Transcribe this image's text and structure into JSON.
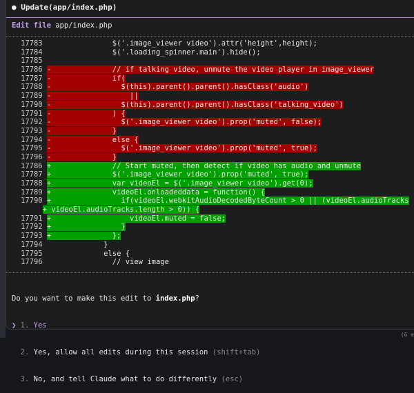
{
  "header": {
    "title": "● Update(app/index.php)",
    "edit_keyword": "Edit file",
    "file_path": "app/index.php"
  },
  "colors": {
    "removed": "#a30000",
    "added": "#00a000",
    "accent": "#c29df0"
  },
  "diff": [
    {
      "num": "17783",
      "sign": " ",
      "type": "ctx",
      "code": "             $('.image_viewer video').attr('height',height);"
    },
    {
      "num": "17784",
      "sign": " ",
      "type": "ctx",
      "code": "             $('.loading_spinner.main').hide();"
    },
    {
      "num": "17785",
      "sign": " ",
      "type": "ctx",
      "code": ""
    },
    {
      "num": "17786",
      "sign": "-",
      "type": "del",
      "code": "             // if talking video, unmute the video player in image_viewer"
    },
    {
      "num": "17787",
      "sign": "-",
      "type": "del",
      "code": "             if("
    },
    {
      "num": "17788",
      "sign": "-",
      "type": "del",
      "code": "               $(this).parent().parent().hasClass('audio')"
    },
    {
      "num": "17789",
      "sign": "-",
      "type": "del",
      "code": "                 ||"
    },
    {
      "num": "17790",
      "sign": "-",
      "type": "del",
      "code": "               $(this).parent().parent().hasClass('talking_video')"
    },
    {
      "num": "17791",
      "sign": "-",
      "type": "del",
      "code": "             ) {"
    },
    {
      "num": "17792",
      "sign": "-",
      "type": "del",
      "code": "               $('.image_viewer video').prop('muted', false);"
    },
    {
      "num": "17793",
      "sign": "-",
      "type": "del",
      "code": "             }"
    },
    {
      "num": "17794",
      "sign": "-",
      "type": "del",
      "code": "             else {"
    },
    {
      "num": "17795",
      "sign": "-",
      "type": "del",
      "code": "               $('.image_viewer video').prop('muted', true);"
    },
    {
      "num": "17796",
      "sign": "-",
      "type": "del",
      "code": "             }"
    },
    {
      "num": "17786",
      "sign": "+",
      "type": "add",
      "code": "             // Start muted, then detect if video has audio and unmute"
    },
    {
      "num": "17787",
      "sign": "+",
      "type": "add",
      "code": "             $('.image_viewer video').prop('muted', true);"
    },
    {
      "num": "17788",
      "sign": "+",
      "type": "add",
      "code": "             var videoEl = $('.image_viewer video').get(0);"
    },
    {
      "num": "17789",
      "sign": "+",
      "type": "add",
      "code": "             videoEl.onloadeddata = function() {"
    },
    {
      "num": "17790",
      "sign": "+",
      "type": "add",
      "code": "               if(videoEl.webkitAudioDecodedByteCount > 0 || (videoEl.audioTracks"
    },
    {
      "num": "",
      "sign": "+",
      "type": "add wrap",
      "code": "videoEl.audioTracks.length > 0)) {"
    },
    {
      "num": "17791",
      "sign": "+",
      "type": "add",
      "code": "                 videoEl.muted = false;"
    },
    {
      "num": "17792",
      "sign": "+",
      "type": "add",
      "code": "               }"
    },
    {
      "num": "17793",
      "sign": "+",
      "type": "add",
      "code": "             };"
    },
    {
      "num": "17794",
      "sign": " ",
      "type": "ctx",
      "code": "           }"
    },
    {
      "num": "17795",
      "sign": " ",
      "type": "ctx",
      "code": "           else {"
    },
    {
      "num": "17796",
      "sign": " ",
      "type": "ctx",
      "code": "             // view image"
    }
  ],
  "prompt": {
    "question_prefix": "Do you want to make this edit to ",
    "question_file": "index.php",
    "question_suffix": "?",
    "cursor": "❯",
    "options": [
      {
        "num": "1.",
        "label": "Yes",
        "hint": ""
      },
      {
        "num": "2.",
        "label": "Yes, allow all edits during this session",
        "hint": "(shift+tab)"
      },
      {
        "num": "3.",
        "label": "No, and tell Claude what to do differently",
        "hint": "(esc)"
      }
    ]
  },
  "corner_text": "(6 e"
}
